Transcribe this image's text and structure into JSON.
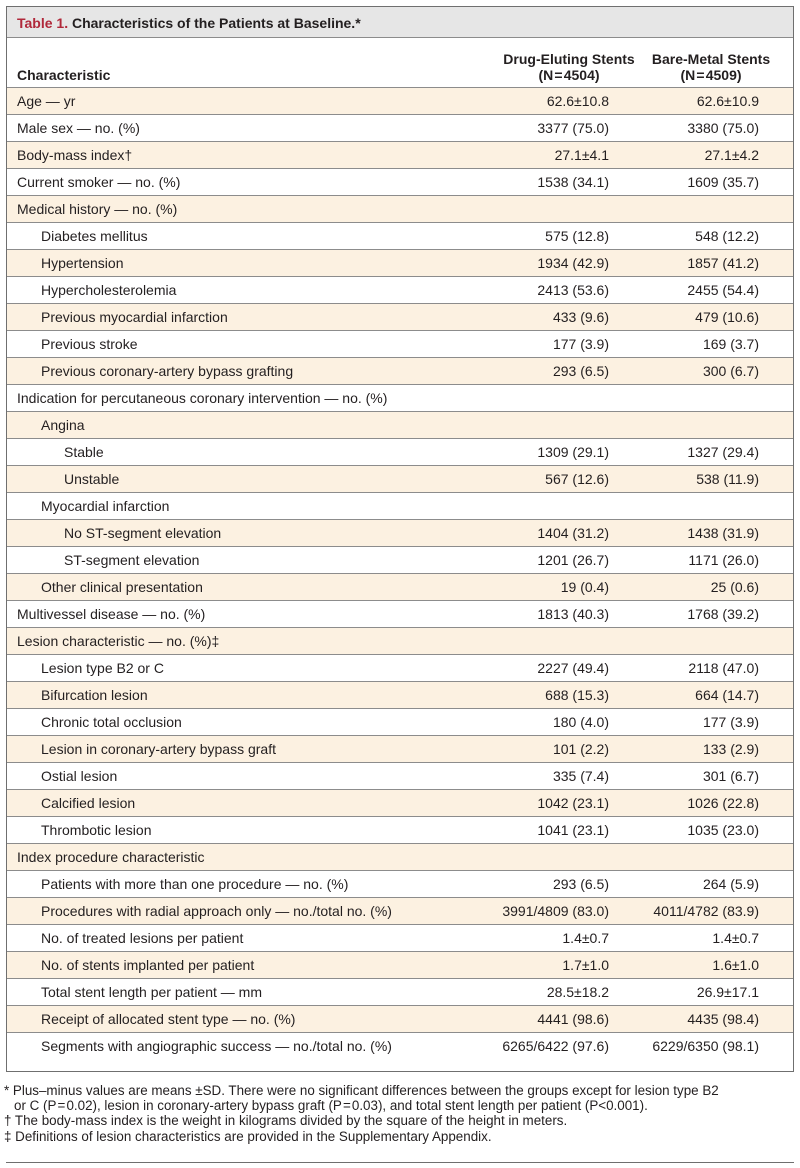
{
  "title": {
    "number": "Table 1.",
    "text": "Characteristics of the Patients at Baseline.*"
  },
  "header": {
    "characteristic": "Characteristic",
    "col1": {
      "name": "Drug-Eluting Stents",
      "n": "(N = 4504)"
    },
    "col2": {
      "name": "Bare-Metal Stents",
      "n": "(N = 4509)"
    }
  },
  "rows": [
    {
      "label": "Age — yr",
      "v1": "62.6±10.8",
      "v2": "62.6±10.9"
    },
    {
      "label": "Male sex — no. (%)",
      "v1": "3377 (75.0)",
      "v2": "3380 (75.0)"
    },
    {
      "label": "Body-mass index†",
      "v1": "27.1±4.1",
      "v2": "27.1±4.2"
    },
    {
      "label": "Current smoker — no. (%)",
      "v1": "1538 (34.1)",
      "v2": "1609 (35.7)"
    },
    {
      "label": "Medical history — no. (%)",
      "v1": "",
      "v2": ""
    },
    {
      "label": "Diabetes mellitus",
      "v1": "575 (12.8)",
      "v2": "548 (12.2)"
    },
    {
      "label": "Hypertension",
      "v1": "1934 (42.9)",
      "v2": "1857 (41.2)"
    },
    {
      "label": "Hypercholesterolemia",
      "v1": "2413 (53.6)",
      "v2": "2455 (54.4)"
    },
    {
      "label": "Previous myocardial infarction",
      "v1": "433 (9.6)",
      "v2": "479 (10.6)"
    },
    {
      "label": "Previous stroke",
      "v1": "177 (3.9)",
      "v2": "169 (3.7)"
    },
    {
      "label": "Previous coronary-artery bypass grafting",
      "v1": "293 (6.5)",
      "v2": "300 (6.7)"
    },
    {
      "label": "Indication for percutaneous coronary intervention — no. (%)",
      "v1": "",
      "v2": ""
    },
    {
      "label": "Angina",
      "v1": "",
      "v2": ""
    },
    {
      "label": "Stable",
      "v1": "1309 (29.1)",
      "v2": "1327 (29.4)"
    },
    {
      "label": "Unstable",
      "v1": "567 (12.6)",
      "v2": "538 (11.9)"
    },
    {
      "label": "Myocardial infarction",
      "v1": "",
      "v2": ""
    },
    {
      "label": "No ST-segment elevation",
      "v1": "1404 (31.2)",
      "v2": "1438 (31.9)"
    },
    {
      "label": "ST-segment elevation",
      "v1": "1201 (26.7)",
      "v2": "1171 (26.0)"
    },
    {
      "label": "Other clinical presentation",
      "v1": "19 (0.4)",
      "v2": "25 (0.6)"
    },
    {
      "label": "Multivessel disease — no. (%)",
      "v1": "1813 (40.3)",
      "v2": "1768 (39.2)"
    },
    {
      "label": "Lesion characteristic — no. (%)‡",
      "v1": "",
      "v2": ""
    },
    {
      "label": "Lesion type B2 or C",
      "v1": "2227 (49.4)",
      "v2": "2118 (47.0)"
    },
    {
      "label": "Bifurcation lesion",
      "v1": "688 (15.3)",
      "v2": "664 (14.7)"
    },
    {
      "label": "Chronic total occlusion",
      "v1": "180 (4.0)",
      "v2": "177 (3.9)"
    },
    {
      "label": "Lesion in coronary-artery bypass graft",
      "v1": "101 (2.2)",
      "v2": "133 (2.9)"
    },
    {
      "label": "Ostial lesion",
      "v1": "335 (7.4)",
      "v2": "301 (6.7)"
    },
    {
      "label": "Calcified lesion",
      "v1": "1042 (23.1)",
      "v2": "1026 (22.8)"
    },
    {
      "label": "Thrombotic lesion",
      "v1": "1041 (23.1)",
      "v2": "1035 (23.0)"
    },
    {
      "label": "Index procedure characteristic",
      "v1": "",
      "v2": ""
    },
    {
      "label": "Patients with more than one procedure — no. (%)",
      "v1": "293 (6.5)",
      "v2": "264 (5.9)"
    },
    {
      "label": "Procedures with radial approach only — no./total no. (%)",
      "v1": "3991/4809 (83.0)",
      "v2": "4011/4782 (83.9)"
    },
    {
      "label": "No. of treated lesions per patient",
      "v1": "1.4±0.7",
      "v2": "1.4±0.7"
    },
    {
      "label": "No. of stents implanted per patient",
      "v1": "1.7±1.0",
      "v2": "1.6±1.0"
    },
    {
      "label": "Total stent length per patient — mm",
      "v1": "28.5±18.2",
      "v2": "26.9±17.1"
    },
    {
      "label": "Receipt of allocated stent type — no. (%)",
      "v1": "4441 (98.6)",
      "v2": "4435 (98.4)"
    },
    {
      "label": "Segments with angiographic success — no./total no. (%)",
      "v1": "6265/6422 (97.6)",
      "v2": "6229/6350 (98.1)"
    }
  ],
  "footnotes": [
    "* Plus–minus values are means ±SD. There were no significant differences between the groups except for lesion type B2",
    "or C (P = 0.02), lesion in coronary-artery bypass graft (P = 0.03), and total stent length per patient (P<0.001).",
    "† The body-mass index is the weight in kilograms divided by the square of the height in meters.",
    "‡ Definitions of lesion characteristics are provided in the Supplementary Appendix."
  ]
}
